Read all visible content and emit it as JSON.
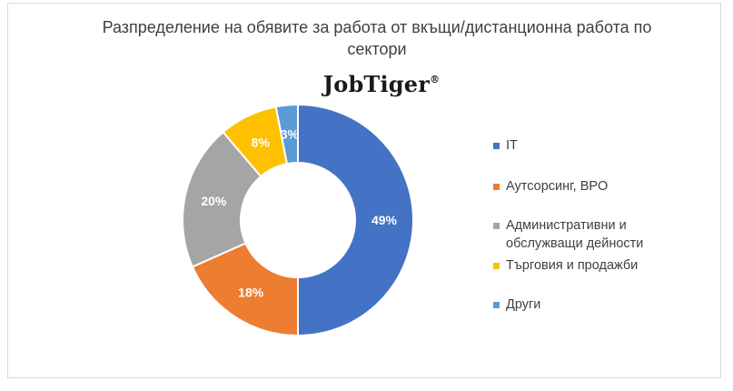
{
  "chart_data": {
    "type": "pie",
    "variant": "donut",
    "title": "Разпределение на обявите за работа от вкъщи/дистанционна работа по сектори",
    "logo": {
      "text": "JobTiger",
      "mark": "®"
    },
    "legend_position": "right",
    "categories": [
      "IT",
      "Аутсорсинг, BPO",
      "Административни и обслужващи дейности",
      "Търговия и продажби",
      "Други"
    ],
    "values": [
      49,
      18,
      20,
      8,
      3
    ],
    "data_labels": [
      "49%",
      "18%",
      "20%",
      "8%",
      "3%"
    ],
    "colors": [
      "#4472c4",
      "#ed7d31",
      "#a5a5a5",
      "#ffc000",
      "#5b9bd5"
    ]
  }
}
